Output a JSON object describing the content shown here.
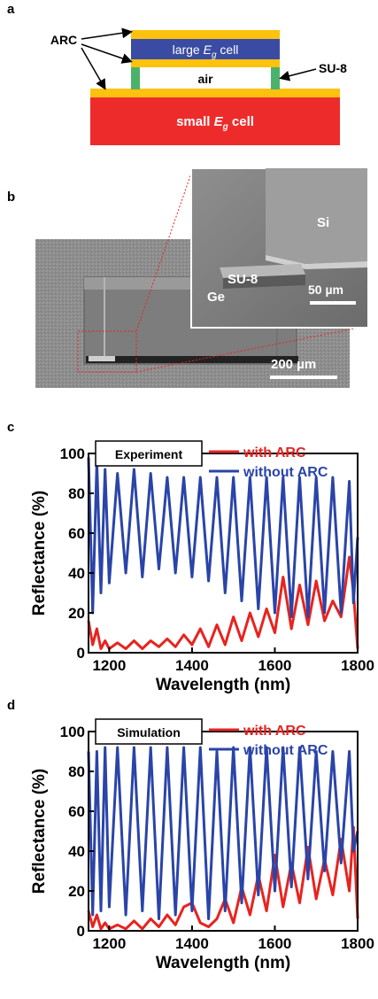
{
  "panels": {
    "a": {
      "letter": "a",
      "arc_label": "ARC",
      "su8_label": "SU-8",
      "large_cell_text": "large ",
      "large_cell_sym": "E",
      "large_cell_sub": "g",
      "large_cell_suffix": " cell",
      "air_label": "air",
      "small_cell_text": "small ",
      "small_cell_sym": "E",
      "small_cell_sub": "g",
      "small_cell_suffix": " cell",
      "colors": {
        "arc": "#fdc20d",
        "large_cell": "#3a4ba3",
        "spacer": "#4bb26a",
        "small_cell": "#ee2b2b"
      }
    },
    "b": {
      "letter": "b",
      "inset_si": "Si",
      "inset_su8": "SU-8",
      "inset_ge": "Ge",
      "inset_scale": "50 µm",
      "main_scale": "200 µm"
    },
    "c": {
      "letter": "c"
    },
    "d": {
      "letter": "d"
    }
  },
  "chart_data": [
    {
      "type": "line",
      "box_label": "Experiment",
      "xlabel": "Wavelength (nm)",
      "ylabel": "Reflectance (%)",
      "xlim": [
        1150,
        1800
      ],
      "ylim": [
        0,
        100
      ],
      "xticks": [
        "1200",
        "1400",
        "1600",
        "1800"
      ],
      "yticks": [
        "0",
        "20",
        "40",
        "60",
        "80",
        "100"
      ],
      "series": [
        {
          "name": "with ARC",
          "color": "#e8231f",
          "x": [
            1150,
            1160,
            1170,
            1180,
            1190,
            1200,
            1220,
            1240,
            1260,
            1280,
            1300,
            1320,
            1340,
            1360,
            1380,
            1400,
            1420,
            1440,
            1460,
            1480,
            1500,
            1520,
            1540,
            1560,
            1580,
            1600,
            1620,
            1640,
            1660,
            1680,
            1700,
            1720,
            1740,
            1760,
            1780,
            1790,
            1800
          ],
          "y": [
            16,
            4,
            12,
            2,
            6,
            2,
            5,
            2,
            6,
            2,
            6,
            3,
            7,
            3,
            9,
            4,
            12,
            3,
            14,
            4,
            18,
            6,
            20,
            8,
            22,
            10,
            38,
            12,
            34,
            14,
            36,
            16,
            26,
            18,
            48,
            30,
            2
          ]
        },
        {
          "name": "without ARC",
          "color": "#2a44a8",
          "x": [
            1150,
            1160,
            1170,
            1180,
            1190,
            1200,
            1220,
            1240,
            1260,
            1280,
            1300,
            1320,
            1340,
            1360,
            1380,
            1400,
            1420,
            1440,
            1460,
            1480,
            1500,
            1520,
            1540,
            1560,
            1580,
            1600,
            1620,
            1640,
            1660,
            1680,
            1700,
            1720,
            1740,
            1760,
            1780,
            1790,
            1800
          ],
          "y": [
            98,
            20,
            96,
            30,
            92,
            35,
            90,
            40,
            92,
            38,
            90,
            42,
            88,
            40,
            88,
            38,
            88,
            36,
            88,
            30,
            88,
            26,
            88,
            22,
            88,
            20,
            88,
            18,
            88,
            18,
            88,
            20,
            88,
            20,
            86,
            25,
            58
          ]
        }
      ]
    },
    {
      "type": "line",
      "box_label": "Simulation",
      "xlabel": "Wavelength (nm)",
      "ylabel": "Reflectance (%)",
      "xlim": [
        1150,
        1800
      ],
      "ylim": [
        0,
        100
      ],
      "xticks": [
        "1200",
        "1400",
        "1600",
        "1800"
      ],
      "yticks": [
        "0",
        "20",
        "40",
        "60",
        "80",
        "100"
      ],
      "series": [
        {
          "name": "with ARC",
          "color": "#e8231f",
          "x": [
            1150,
            1160,
            1170,
            1180,
            1190,
            1200,
            1220,
            1240,
            1260,
            1280,
            1300,
            1320,
            1340,
            1360,
            1380,
            1400,
            1420,
            1440,
            1460,
            1480,
            1500,
            1520,
            1540,
            1560,
            1580,
            1600,
            1620,
            1640,
            1660,
            1680,
            1700,
            1720,
            1740,
            1760,
            1780,
            1790,
            1800
          ],
          "y": [
            10,
            2,
            8,
            1,
            4,
            1,
            3,
            1,
            5,
            1,
            6,
            2,
            8,
            3,
            12,
            14,
            4,
            2,
            6,
            16,
            4,
            22,
            8,
            28,
            10,
            38,
            12,
            34,
            14,
            42,
            16,
            36,
            18,
            46,
            20,
            52,
            6
          ]
        },
        {
          "name": "without ARC",
          "color": "#2a44a8",
          "x": [
            1150,
            1160,
            1170,
            1180,
            1190,
            1200,
            1220,
            1240,
            1260,
            1280,
            1300,
            1320,
            1340,
            1360,
            1380,
            1400,
            1420,
            1440,
            1460,
            1480,
            1500,
            1520,
            1540,
            1560,
            1580,
            1600,
            1620,
            1640,
            1660,
            1680,
            1700,
            1720,
            1740,
            1760,
            1780,
            1790,
            1800
          ],
          "y": [
            90,
            8,
            90,
            10,
            92,
            12,
            92,
            8,
            92,
            10,
            92,
            6,
            92,
            8,
            92,
            10,
            92,
            6,
            90,
            10,
            92,
            14,
            92,
            18,
            92,
            20,
            92,
            22,
            92,
            26,
            90,
            30,
            90,
            34,
            90,
            40,
            50
          ]
        }
      ]
    }
  ]
}
